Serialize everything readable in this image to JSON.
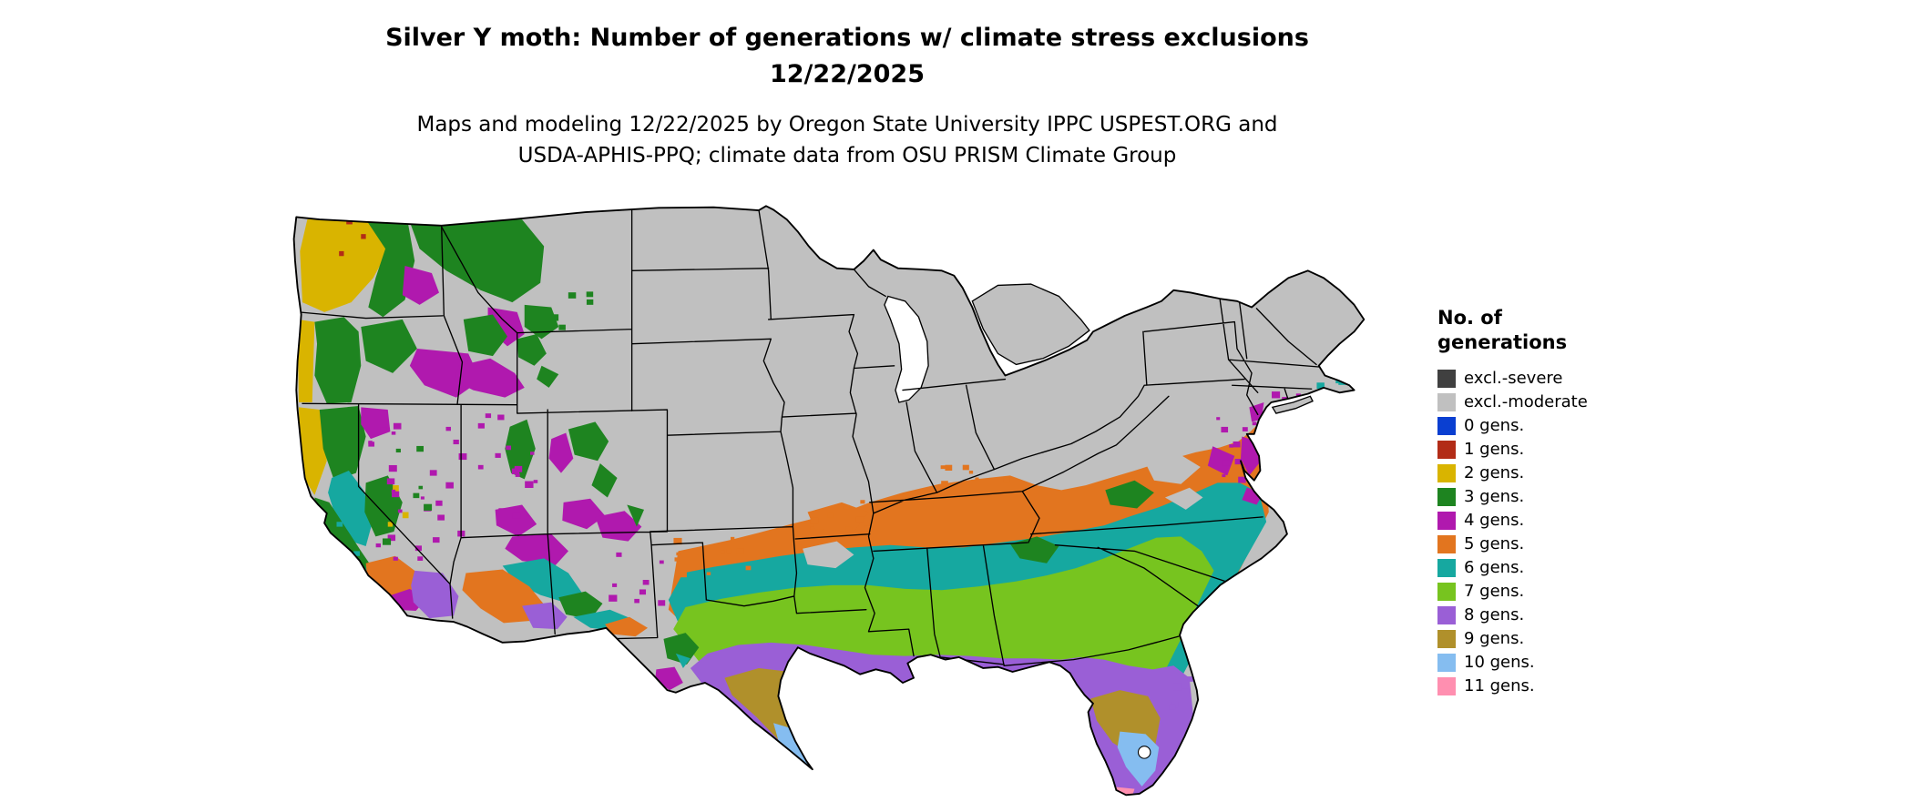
{
  "title": {
    "line1": "Silver Y moth: Number of generations w/ climate stress exclusions",
    "line2": "12/22/2025"
  },
  "subtitle": {
    "line1": "Maps and modeling 12/22/2025 by Oregon State University IPPC USPEST.ORG and",
    "line2": "USDA-APHIS-PPQ; climate data from OSU PRISM Climate Group"
  },
  "legend": {
    "title_line1": "No. of",
    "title_line2": "generations",
    "items": [
      {
        "key": "severe",
        "label": "excl.-severe",
        "color": "#404040"
      },
      {
        "key": "moderate",
        "label": "excl.-moderate",
        "color": "#c0c0c0"
      },
      {
        "key": "g0",
        "label": "0 gens.",
        "color": "#0a3fd1"
      },
      {
        "key": "g1",
        "label": "1 gens.",
        "color": "#b22c17"
      },
      {
        "key": "g2",
        "label": "2 gens.",
        "color": "#d9b400"
      },
      {
        "key": "g3",
        "label": "3 gens.",
        "color": "#1e8420"
      },
      {
        "key": "g4",
        "label": "4 gens.",
        "color": "#b019ae"
      },
      {
        "key": "g5",
        "label": "5 gens.",
        "color": "#e2751f"
      },
      {
        "key": "g6",
        "label": "6 gens.",
        "color": "#16a8a0"
      },
      {
        "key": "g7",
        "label": "7 gens.",
        "color": "#77c41f"
      },
      {
        "key": "g8",
        "label": "8 gens.",
        "color": "#9a5fd6"
      },
      {
        "key": "g9",
        "label": "9 gens.",
        "color": "#b0902b"
      },
      {
        "key": "g10",
        "label": "10 gens.",
        "color": "#85bdf0"
      },
      {
        "key": "g11",
        "label": "11 gens.",
        "color": "#ff8fb0"
      }
    ]
  },
  "map": {
    "land_base_color": "#c0c0c0",
    "border_color": "#000000",
    "water_color": "#ffffff"
  }
}
